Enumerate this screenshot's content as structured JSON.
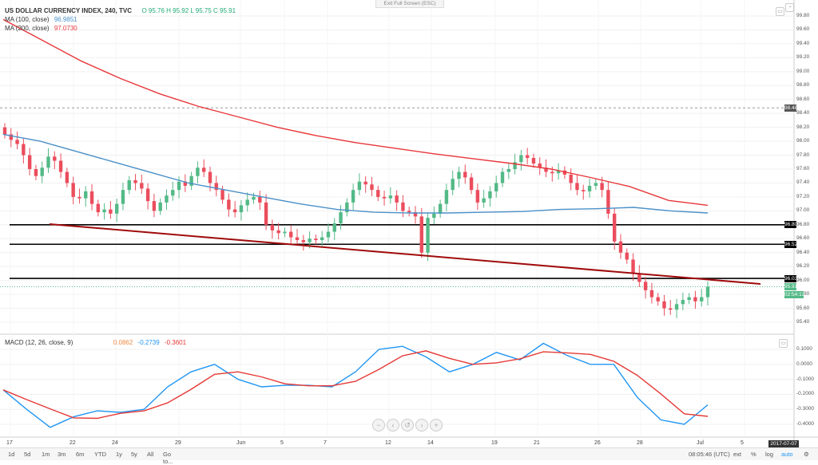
{
  "header": {
    "symbol_title": "US DOLLAR CURRENCY INDEX, 240, TVC",
    "ohlc": "O 95.76  H 95.92  L 95.75  C 95.91",
    "exit_fullscreen": "Exit Full Screen (ESC)"
  },
  "indicators": {
    "ma100_label": "MA (100, close)",
    "ma100_value": "96.9851",
    "ma200_label": "MA (200, close)",
    "ma200_value": "97.0730",
    "macd_label": "MACD (12, 26, close, 9)",
    "macd_hist": "0.0862",
    "macd_line": "-0.2739",
    "macd_signal": "-0.3601"
  },
  "colors": {
    "up": "#53b987",
    "down": "#eb4d5c",
    "ma100": "#4a90c8",
    "ma200": "#e8373a",
    "trendline": "#a00a0a",
    "hline": "#000000",
    "macd": "#2196f3",
    "signal": "#e53935"
  },
  "price_axis": {
    "ticks": [
      "99.80",
      "99.60",
      "99.40",
      "99.20",
      "99.00",
      "98.80",
      "98.60",
      "98.40",
      "98.20",
      "98.00",
      "97.80",
      "97.60",
      "97.40",
      "97.20",
      "97.00",
      "96.80",
      "96.60",
      "96.40",
      "96.20",
      "96.00",
      "95.80",
      "95.60",
      "95.40"
    ],
    "tags": [
      {
        "value": "98.48",
        "bg": "#555555"
      },
      {
        "value": "96.80",
        "bg": "#000000"
      },
      {
        "value": "96.52",
        "bg": "#000000"
      },
      {
        "value": "96.03",
        "bg": "#000000"
      },
      {
        "value": "95.91",
        "bg": "#53b987"
      },
      {
        "value": "02:54:13",
        "bg": "#53b987"
      }
    ]
  },
  "macd_axis": {
    "ticks": [
      "0.1000",
      "0.0000",
      "-0.1000",
      "-0.2000",
      "-0.3000",
      "-0.4000"
    ]
  },
  "time_axis": {
    "ticks": [
      "17",
      "22",
      "24",
      "29",
      "Jun",
      "5",
      "7",
      "12",
      "14",
      "19",
      "21",
      "26",
      "28",
      "Jul",
      "5"
    ],
    "current": "2017-07-07"
  },
  "timeframes": [
    "1d",
    "5d",
    "1m",
    "3m",
    "6m",
    "YTD",
    "1y",
    "5y",
    "All",
    "Go to..."
  ],
  "footer": {
    "clock": "08:05:46 (UTC)",
    "ext": "ext",
    "percent": "%",
    "log": "log",
    "auto": "auto"
  },
  "chart_data": {
    "type": "line",
    "series": [
      {
        "name": "MA (100, close)",
        "values": [
          98.1,
          98.0,
          97.85,
          97.7,
          97.55,
          97.4,
          97.3,
          97.2,
          97.1,
          97.02,
          96.98,
          96.97,
          96.97,
          96.98,
          96.99,
          97.02,
          97.03,
          97.05,
          97.0,
          96.97
        ]
      },
      {
        "name": "MA (200, close)",
        "values": [
          99.75,
          99.45,
          99.15,
          98.9,
          98.68,
          98.5,
          98.35,
          98.2,
          98.08,
          97.98,
          97.9,
          97.82,
          97.75,
          97.68,
          97.6,
          97.48,
          97.35,
          97.15,
          97.08
        ]
      },
      {
        "name": "MACD (12, 26, close, 9)",
        "values": [
          -0.17,
          -0.3,
          -0.42,
          -0.35,
          -0.31,
          -0.32,
          -0.3,
          -0.15,
          -0.05,
          0.0,
          -0.1,
          -0.15,
          -0.14,
          -0.14,
          -0.15,
          -0.05,
          0.1,
          0.12,
          0.05,
          -0.05,
          0.0,
          0.08,
          0.03,
          0.14,
          0.06,
          0.0,
          0.0,
          -0.22,
          -0.37,
          -0.4,
          -0.27
        ]
      }
    ],
    "ylim": [
      95.3,
      99.85
    ]
  }
}
